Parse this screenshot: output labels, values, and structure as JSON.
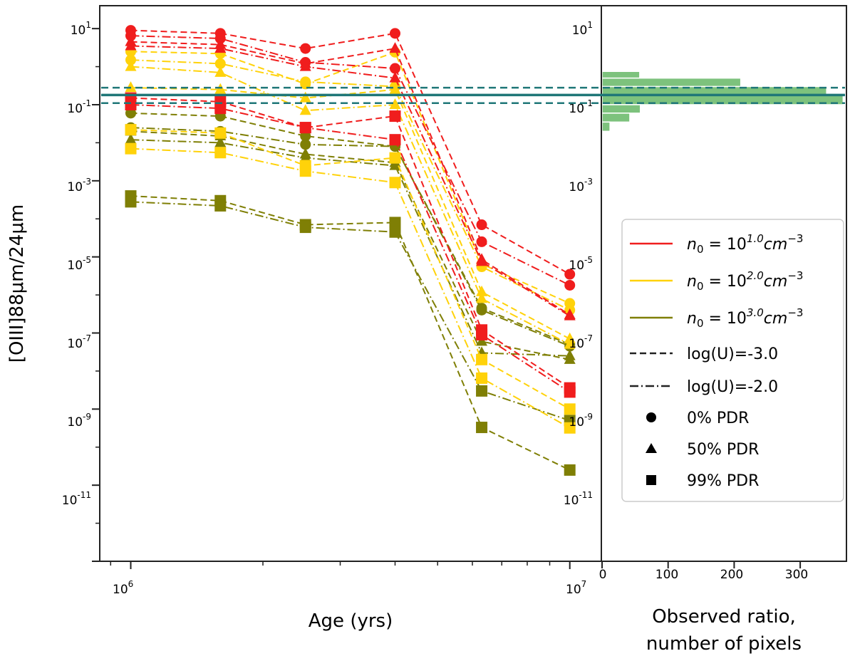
{
  "chart_data": [
    {
      "type": "line",
      "name": "model-grid",
      "xlabel": "Age (yrs)",
      "ylabel": "[OIII]88μm/24μm",
      "xscale": "log",
      "yscale": "log",
      "xlim": [
        850000,
        11800000
      ],
      "ylim": [
        1e-13,
        40
      ],
      "x": [
        1000000,
        1600000,
        2500000,
        4000000,
        6300000,
        10000000
      ],
      "x_tick_labels": [
        {
          "base": "10",
          "exp": "6"
        },
        {
          "base": "10",
          "exp": "7"
        }
      ],
      "y_tick_labels": [
        {
          "value": 10,
          "base": "10",
          "exp": "1"
        },
        {
          "value": 0.1,
          "base": "10",
          "exp": "-1"
        },
        {
          "value": 0.001,
          "base": "10",
          "exp": "-3"
        },
        {
          "value": 1e-05,
          "base": "10",
          "exp": "-5"
        },
        {
          "value": 1e-07,
          "base": "10",
          "exp": "-7"
        },
        {
          "value": 1e-09,
          "base": "10",
          "exp": "-9"
        },
        {
          "value": 1e-11,
          "base": "10",
          "exp": "-11"
        }
      ],
      "observed_ratio_lines": [
        {
          "value": 0.18,
          "style": "solid"
        },
        {
          "value": 0.28,
          "style": "dashed"
        },
        {
          "value": 0.11,
          "style": "dashed"
        }
      ],
      "series": [
        {
          "density": "n0=1e1",
          "logU": -3.0,
          "pdr": "0%",
          "values": [
            9,
            7.5,
            3,
            7.5,
            7e-05,
            3.5e-06
          ]
        },
        {
          "density": "n0=1e1",
          "logU": -2.0,
          "pdr": "0%",
          "values": [
            6.5,
            5.5,
            1.3,
            0.9,
            2.5e-05,
            1.8e-06
          ]
        },
        {
          "density": "n0=1e1",
          "logU": -3.0,
          "pdr": "50%",
          "values": [
            4.5,
            3.8,
            1.2,
            3,
            8.5e-06,
            3e-07
          ]
        },
        {
          "density": "n0=1e1",
          "logU": -2.0,
          "pdr": "50%",
          "values": [
            3.5,
            3,
            1,
            0.5,
            7.5e-06,
            2.8e-07
          ]
        },
        {
          "density": "n0=1e1",
          "logU": -3.0,
          "pdr": "99%",
          "values": [
            0.15,
            0.12,
            0.025,
            0.05,
            1.2e-07,
            3.6e-09
          ]
        },
        {
          "density": "n0=1e1",
          "logU": -2.0,
          "pdr": "99%",
          "values": [
            0.1,
            0.08,
            0.025,
            0.012,
            9e-08,
            2.8e-09
          ]
        },
        {
          "density": "n0=1e2",
          "logU": -3.0,
          "pdr": "0%",
          "values": [
            2.5,
            2.2,
            0.35,
            2.4,
            6.5e-06,
            6e-07
          ]
        },
        {
          "density": "n0=1e2",
          "logU": -2.0,
          "pdr": "0%",
          "values": [
            1.5,
            1.2,
            0.4,
            0.3,
            5.5e-06,
            4e-07
          ]
        },
        {
          "density": "n0=1e2",
          "logU": -3.0,
          "pdr": "50%",
          "values": [
            0.28,
            0.25,
            0.15,
            0.25,
            1.2e-06,
            7e-08
          ]
        },
        {
          "density": "n0=1e2",
          "logU": -2.0,
          "pdr": "50%",
          "values": [
            1,
            0.7,
            0.07,
            0.1,
            8e-07,
            5e-08
          ]
        },
        {
          "density": "n0=1e2",
          "logU": -3.0,
          "pdr": "99%",
          "values": [
            0.022,
            0.018,
            0.0025,
            0.004,
            2e-08,
            1e-09
          ]
        },
        {
          "density": "n0=1e2",
          "logU": -2.0,
          "pdr": "99%",
          "values": [
            0.007,
            0.0055,
            0.0018,
            0.0009,
            6.5e-09,
            3.2e-10
          ]
        },
        {
          "density": "n0=1e3",
          "logU": -3.0,
          "pdr": "0%",
          "values": [
            0.06,
            0.05,
            0.015,
            0.008,
            4.5e-07,
            5e-08
          ]
        },
        {
          "density": "n0=1e3",
          "logU": -2.0,
          "pdr": "0%",
          "values": [
            0.025,
            0.02,
            0.009,
            0.008,
            4e-07,
            4.5e-08
          ]
        },
        {
          "density": "n0=1e3",
          "logU": -3.0,
          "pdr": "50%",
          "values": [
            0.02,
            0.015,
            0.005,
            0.003,
            6e-08,
            2e-08
          ]
        },
        {
          "density": "n0=1e3",
          "logU": -2.0,
          "pdr": "50%",
          "values": [
            0.012,
            0.01,
            0.004,
            0.0025,
            3e-08,
            2.5e-08
          ]
        },
        {
          "density": "n0=1e3",
          "logU": -3.0,
          "pdr": "99%",
          "values": [
            0.0004,
            0.0003,
            7e-05,
            8e-05,
            3.3e-10,
            2.5e-11
          ]
        },
        {
          "density": "n0=1e3",
          "logU": -2.0,
          "pdr": "99%",
          "values": [
            0.00028,
            0.00022,
            6e-05,
            4.5e-05,
            3e-09,
            5e-10
          ]
        }
      ]
    },
    {
      "type": "bar",
      "name": "observed-histogram",
      "orientation": "horizontal",
      "xlabel": "Observed ratio, number of pixels",
      "xlabel_lines": [
        "Observed ratio,",
        "number of pixels"
      ],
      "xlim": [
        0,
        370
      ],
      "x_ticks": [
        0,
        100,
        200,
        300
      ],
      "y_tick_labels": [
        "10",
        "10",
        "10",
        "10",
        "10",
        "10",
        "10"
      ],
      "y_tick_exps": [
        "1",
        "-1",
        "-3",
        "-5",
        "-7",
        "-9",
        "-11"
      ],
      "bins": [
        {
          "y_low": 0.5,
          "y_high": 0.75,
          "count": 57
        },
        {
          "y_low": 0.3,
          "y_high": 0.5,
          "count": 210
        },
        {
          "y_low": 0.18,
          "y_high": 0.3,
          "count": 340
        },
        {
          "y_low": 0.1,
          "y_high": 0.18,
          "count": 365
        },
        {
          "y_low": 0.06,
          "y_high": 0.1,
          "count": 58
        },
        {
          "y_low": 0.035,
          "y_high": 0.06,
          "count": 42
        },
        {
          "y_low": 0.02,
          "y_high": 0.035,
          "count": 12
        }
      ]
    }
  ],
  "colors": {
    "n0_1e1": "#f01d1d",
    "n0_1e2": "#ffd20a",
    "n0_1e3": "#7f7f05",
    "observed": "#1f7778",
    "histogram": "#7dc27d"
  },
  "legend": {
    "items": [
      {
        "kind": "line",
        "color": "n0_1e1",
        "prefix": "n",
        "sub": "0",
        "mid": " = 10",
        "sup": "1.0",
        "unit": "cm",
        "unit_sup": "−3"
      },
      {
        "kind": "line",
        "color": "n0_1e2",
        "prefix": "n",
        "sub": "0",
        "mid": " = 10",
        "sup": "2.0",
        "unit": "cm",
        "unit_sup": "−3"
      },
      {
        "kind": "line",
        "color": "n0_1e3",
        "prefix": "n",
        "sub": "0",
        "mid": " = 10",
        "sup": "3.0",
        "unit": "cm",
        "unit_sup": "−3"
      },
      {
        "kind": "dashed",
        "label": "log(U)=-3.0"
      },
      {
        "kind": "dashdot",
        "label": "log(U)=-2.0"
      },
      {
        "kind": "circle",
        "label": "0% PDR"
      },
      {
        "kind": "triangle",
        "label": "50% PDR"
      },
      {
        "kind": "square",
        "label": "99% PDR"
      }
    ]
  }
}
